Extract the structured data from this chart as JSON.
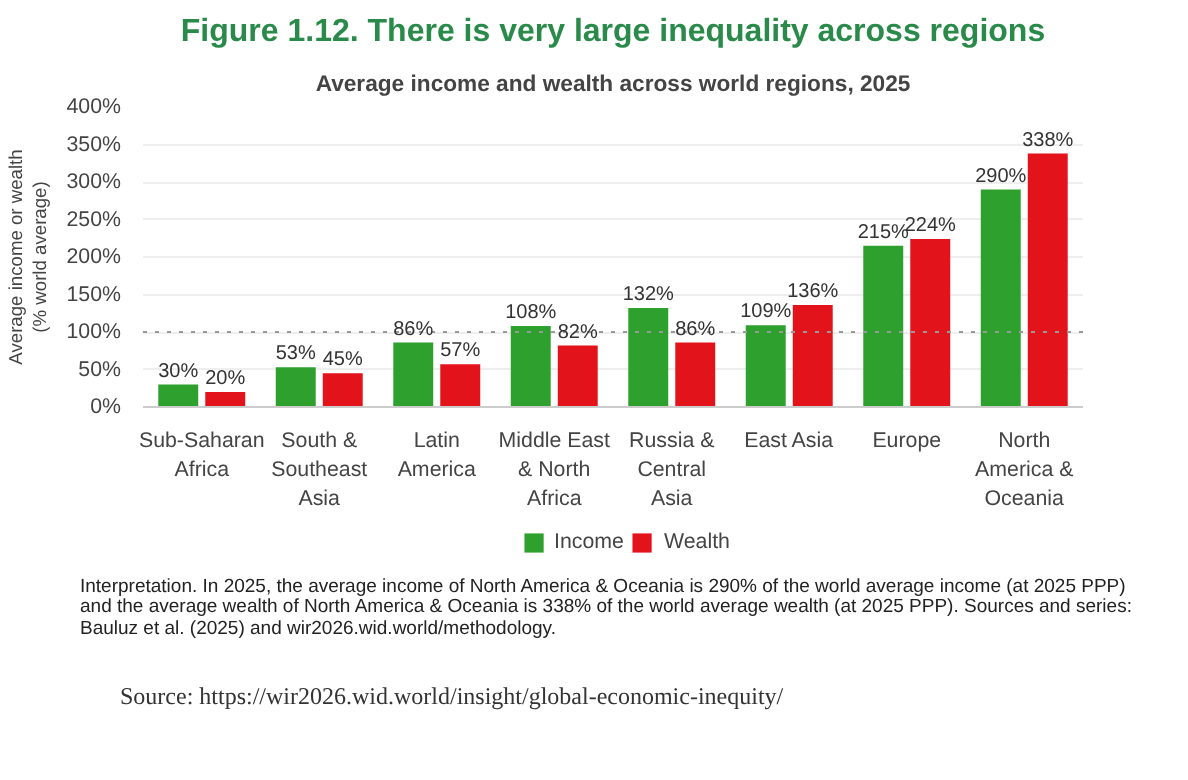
{
  "chart_data": {
    "type": "bar",
    "title": "Figure 1.12. There is very large inequality across regions",
    "subtitle": "Average income and wealth across world regions, 2025",
    "ylabel": "Average income or wealth\n(% world average)",
    "categories": [
      "Sub-Saharan Africa",
      "South & Southeast Asia",
      "Latin America",
      "Middle East & North Africa",
      "Russia & Central Asia",
      "East Asia",
      "Europe",
      "North America & Oceania"
    ],
    "series": [
      {
        "name": "Income",
        "color": "#2ea02e",
        "values": [
          30,
          53,
          86,
          108,
          132,
          109,
          215,
          290
        ],
        "value_labels": [
          "30%",
          "53%",
          "86%",
          "108%",
          "132%",
          "109%",
          "215%",
          "290%"
        ]
      },
      {
        "name": "Wealth",
        "color": "#e3131b",
        "values": [
          20,
          45,
          57,
          82,
          86,
          136,
          224,
          338
        ],
        "value_labels": [
          "20%",
          "45%",
          "57%",
          "82%",
          "86%",
          "136%",
          "224%",
          "338%"
        ]
      }
    ],
    "ylim": [
      0,
      400
    ],
    "yticks": [
      {
        "value": 0,
        "label": "0%"
      },
      {
        "value": 50,
        "label": "50%"
      },
      {
        "value": 100,
        "label": "100%"
      },
      {
        "value": 150,
        "label": "150%"
      },
      {
        "value": 200,
        "label": "200%"
      },
      {
        "value": 250,
        "label": "250%"
      },
      {
        "value": 300,
        "label": "300%"
      },
      {
        "value": 350,
        "label": "350%"
      },
      {
        "value": 400,
        "label": "400%"
      }
    ],
    "grid": "y",
    "legend": "bottom",
    "ref_lines": [
      {
        "axis": "y",
        "value": 100,
        "color": "#999999",
        "line_style": "dotted"
      }
    ],
    "annotations": [
      "Interpretation. In 2025, the average income of North America & Oceania is 290% of the world average income (at 2025 PPP) and the average wealth of North America & Oceania is 338% of the world average wealth (at 2025 PPP). Sources and series: Bauluz et al. (2025) and wir2026.wid.world/methodology.",
      "Source: https://wir2026.wid.world/insight/global-economic-inequity/"
    ]
  }
}
